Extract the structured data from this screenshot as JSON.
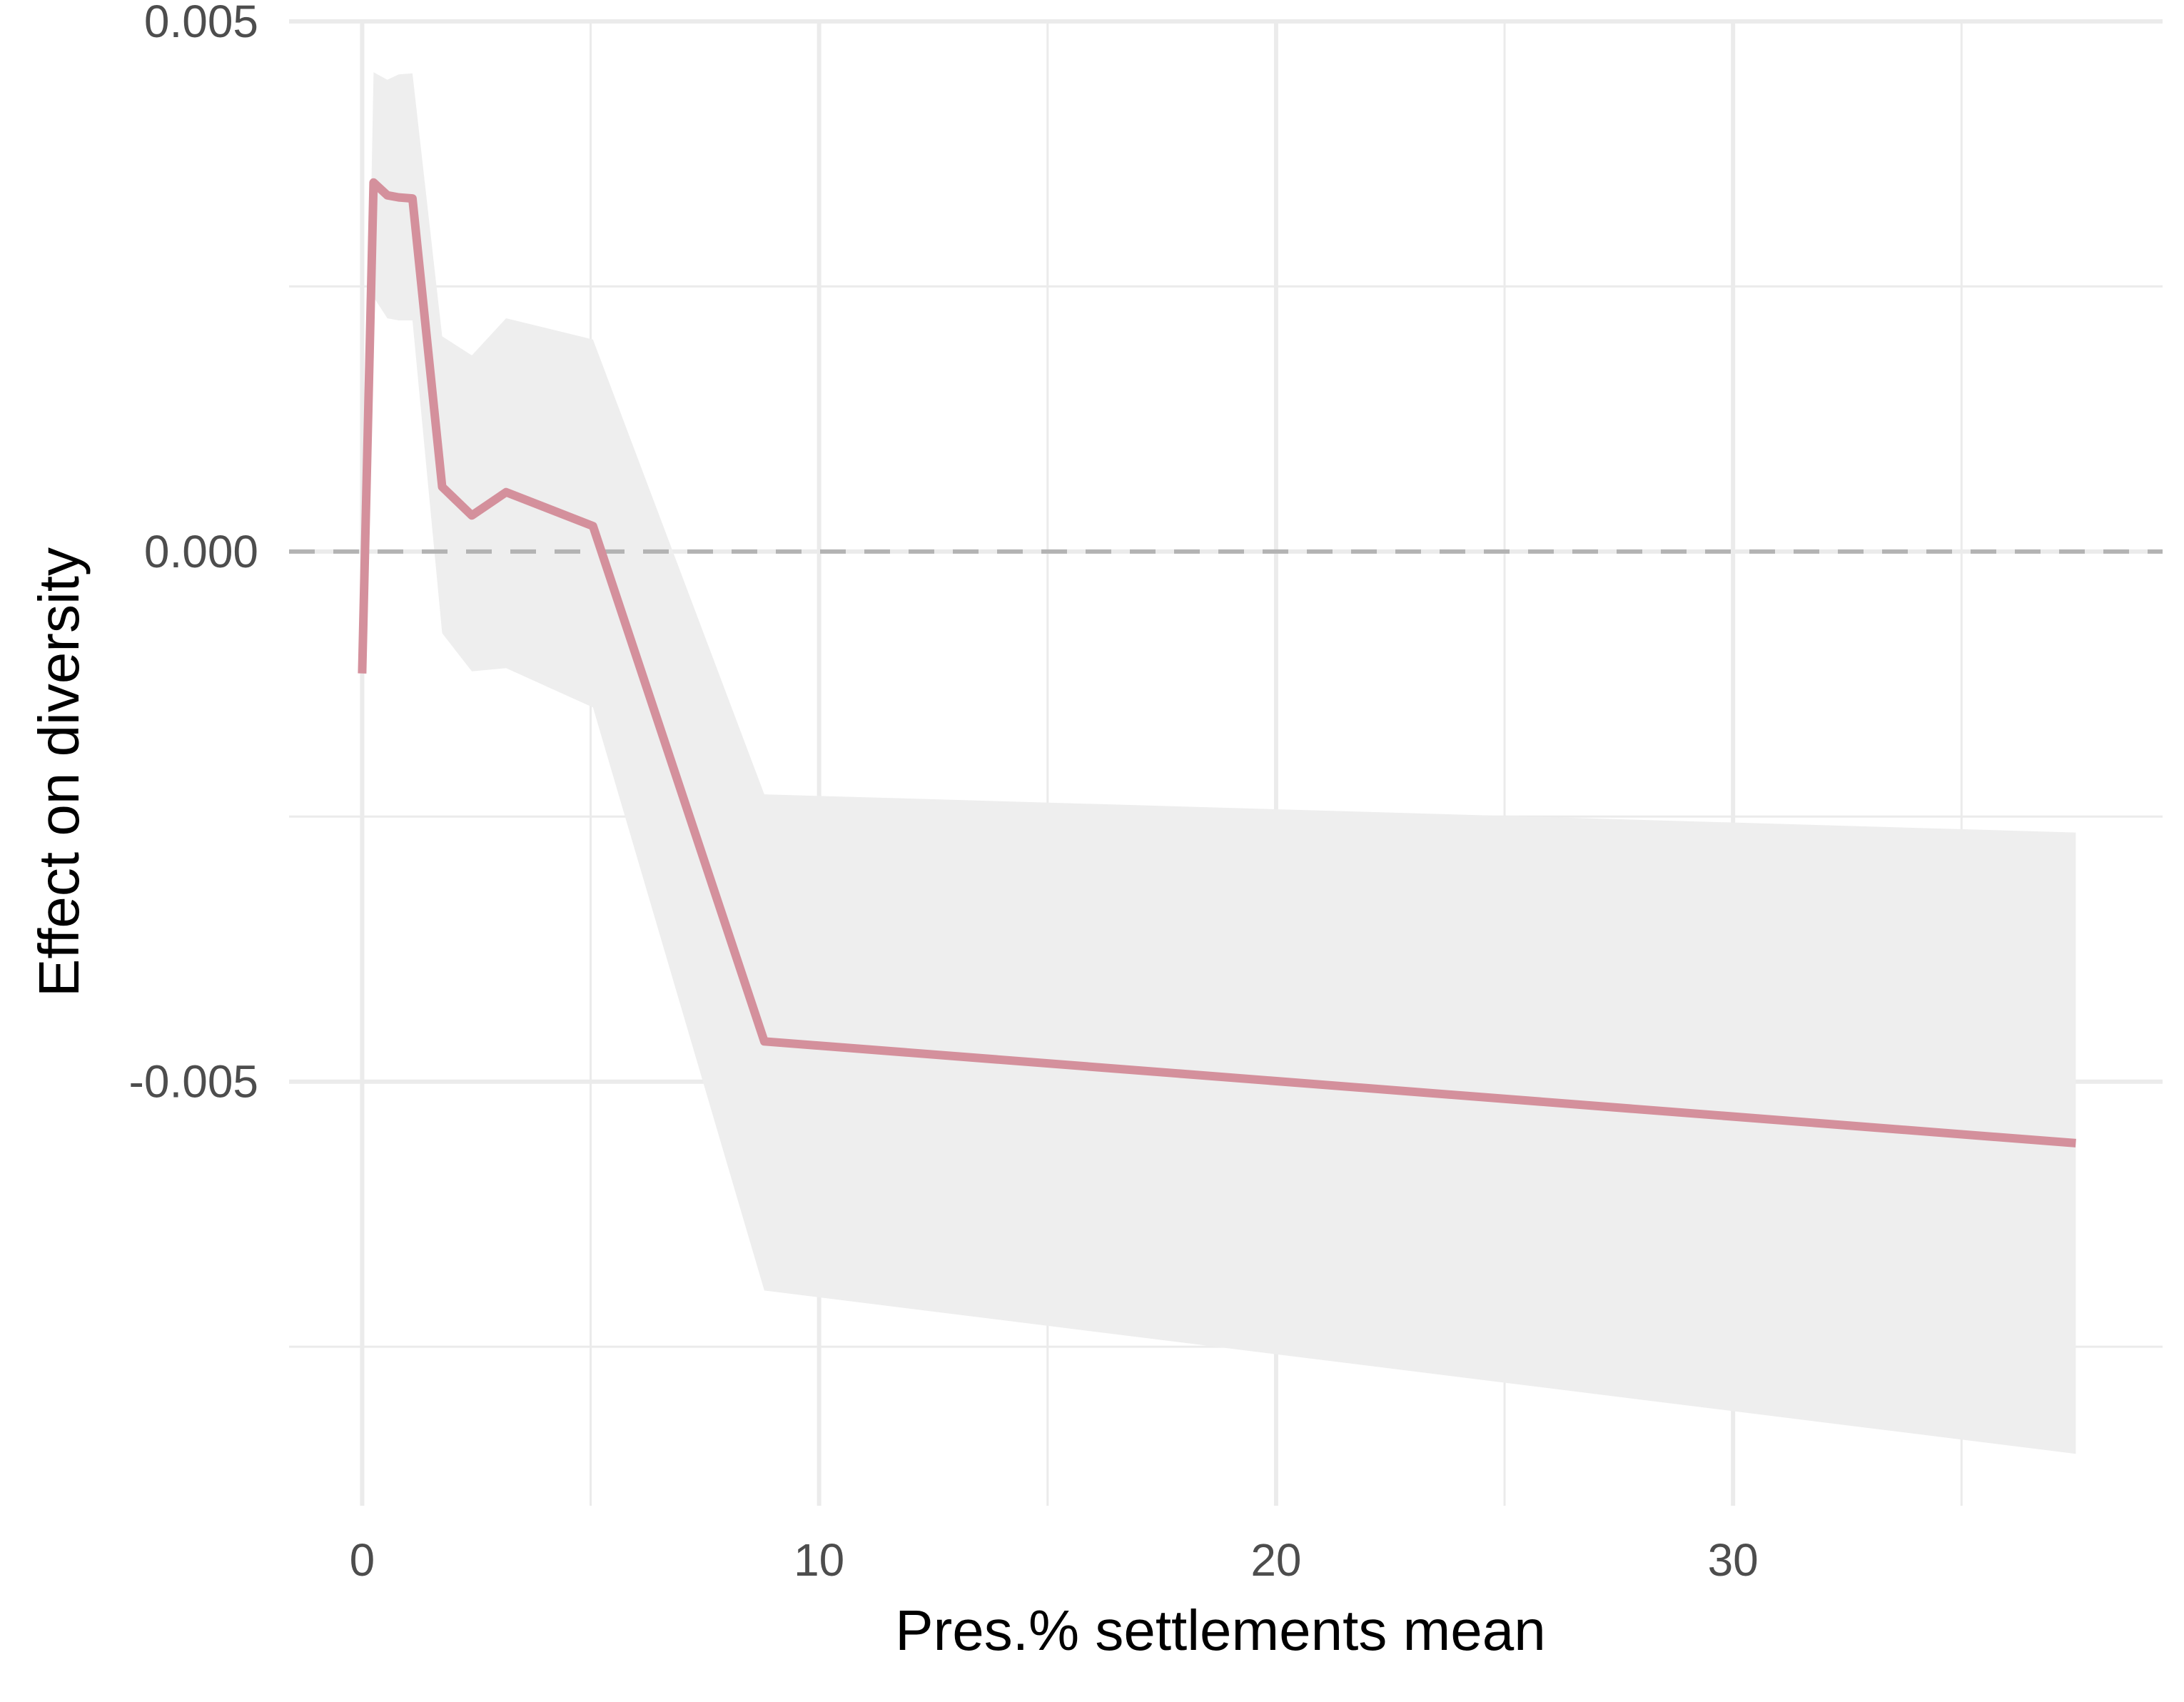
{
  "chart_data": {
    "type": "line",
    "title": "",
    "xlabel": "Pres.% settlements mean",
    "ylabel": "Effect on diversity",
    "xlim": [
      -1.6,
      39.4
    ],
    "ylim": [
      -0.009,
      0.005
    ],
    "x_ticks": [
      0,
      10,
      20,
      30
    ],
    "x_tick_labels": [
      "0",
      "10",
      "20",
      "30"
    ],
    "x_minor_ticks": [
      5,
      15,
      25,
      35
    ],
    "y_ticks": [
      0.005,
      0.0,
      -0.005
    ],
    "y_tick_labels": [
      "0.005",
      "0.000",
      "-0.005"
    ],
    "y_minor_ticks": [
      0.0025,
      -0.0025,
      -0.0075
    ],
    "grid": true,
    "reference_line": {
      "y": 0.0,
      "style": "dashed"
    },
    "legend": "none",
    "series": [
      {
        "x": [
          0.0,
          0.25,
          0.55,
          0.8,
          1.1,
          1.75,
          2.4,
          3.15,
          5.05,
          8.8,
          37.5
        ],
        "values": [
          -0.00115,
          0.00348,
          0.00336,
          0.00334,
          0.00333,
          0.00061,
          0.00034,
          0.00056,
          0.00024,
          -0.00462,
          -0.00558
        ],
        "lower": [
          -0.00115,
          0.0024,
          0.0022,
          0.00218,
          0.00218,
          -0.00077,
          -0.00113,
          -0.0011,
          -0.00147,
          -0.00697,
          -0.00851
        ],
        "upper": [
          -0.00115,
          0.00452,
          0.00445,
          0.0045,
          0.00451,
          0.00203,
          0.00185,
          0.0022,
          0.002,
          -0.00229,
          -0.00265
        ]
      }
    ],
    "colors": {
      "line": "#d4909c",
      "ribbon": "#eeeeee",
      "grid": "#ebebeb",
      "reference": "#b3b3b3",
      "tick_text": "#4d4d4d",
      "title_text": "#000000"
    }
  }
}
